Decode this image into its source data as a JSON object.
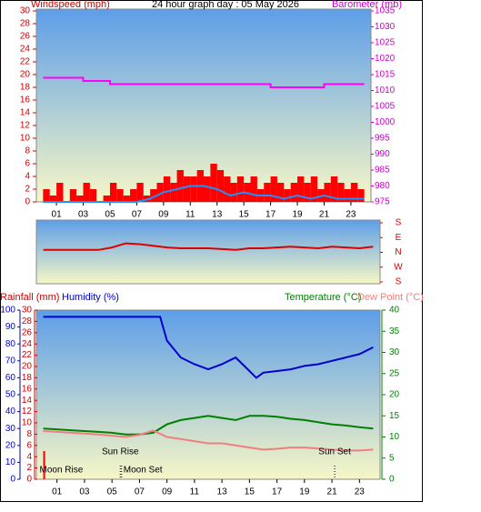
{
  "chart_data": [
    {
      "type": "line",
      "title": "24 hour graph day : 05 May 2026",
      "y_label": "Windspeed (mph)",
      "xlim": [
        -0.5,
        24.5
      ],
      "xticks": [
        {
          "value": 1,
          "label": "01"
        },
        {
          "value": 3,
          "label": "03"
        },
        {
          "value": 5,
          "label": "05"
        },
        {
          "value": 7,
          "label": "07"
        },
        {
          "value": 9,
          "label": "09"
        },
        {
          "value": 11,
          "label": "11"
        },
        {
          "value": 13,
          "label": "13"
        },
        {
          "value": 15,
          "label": "15"
        },
        {
          "value": 17,
          "label": "17"
        },
        {
          "value": 19,
          "label": "19"
        },
        {
          "value": 21,
          "label": "21"
        },
        {
          "value": 23,
          "label": "23"
        }
      ],
      "ylim": [
        0,
        30
      ],
      "yticks": [
        0,
        2,
        4,
        6,
        8,
        10,
        12,
        14,
        16,
        18,
        20,
        22,
        24,
        26,
        28,
        30
      ],
      "y2lim": [
        975,
        1035
      ],
      "y2ticks": [
        975,
        980,
        985,
        990,
        995,
        1000,
        1005,
        1010,
        1015,
        1020,
        1025,
        1030,
        1035
      ],
      "series": [
        {
          "type": "bar",
          "color": "#ff0000",
          "axis": "y",
          "x": [
            0,
            0.5,
            1,
            1.5,
            2,
            2.5,
            3,
            3.5,
            4,
            4.5,
            5,
            5.5,
            6,
            6.5,
            7,
            7.5,
            8,
            8.5,
            9,
            9.5,
            10,
            10.5,
            11,
            11.5,
            12,
            12.5,
            13,
            13.5,
            14,
            14.5,
            15,
            15.5,
            16,
            16.5,
            17,
            17.5,
            18,
            18.5,
            19,
            19.5,
            20,
            20.5,
            21,
            21.5,
            22,
            22.5,
            23,
            23.5
          ],
          "values": [
            2,
            1,
            3,
            0,
            2,
            1,
            3,
            2,
            0,
            1,
            3,
            2,
            1,
            2,
            3,
            1,
            2,
            3,
            4,
            3,
            5,
            4,
            4,
            5,
            4,
            6,
            5,
            4,
            3,
            4,
            3,
            4,
            2,
            3,
            4,
            3,
            2,
            3,
            4,
            3,
            4,
            2,
            3,
            4,
            3,
            2,
            3,
            2
          ]
        },
        {
          "type": "line",
          "color": "#1e90ff",
          "axis": "y",
          "x": [
            0,
            1,
            2,
            3,
            4,
            5,
            6,
            7,
            8,
            9,
            10,
            11,
            12,
            13,
            14,
            15,
            16,
            17,
            18,
            19,
            20,
            21,
            22,
            23,
            24
          ],
          "values": [
            0,
            0,
            0,
            0,
            0,
            0,
            0,
            0,
            0.5,
            1.5,
            2,
            2.5,
            2.5,
            2,
            1,
            1.5,
            1,
            1,
            0.5,
            1,
            0.5,
            1,
            0.5,
            0.5,
            0.5
          ]
        },
        {
          "type": "line",
          "name": "Barometer (mb)",
          "color": "#ff00ff",
          "axis": "y2",
          "x": [
            0,
            3,
            3,
            5,
            5,
            17,
            17,
            21,
            21,
            24
          ],
          "values": [
            1014,
            1014,
            1013,
            1013,
            1012,
            1012,
            1011,
            1011,
            1012,
            1012
          ]
        }
      ]
    },
    {
      "type": "line",
      "xlim": [
        -0.5,
        24.5
      ],
      "ylim": [
        -180,
        180
      ],
      "yticks": [
        {
          "value": 180,
          "label": "S"
        },
        {
          "value": 90,
          "label": "E"
        },
        {
          "value": 0,
          "label": "N"
        },
        {
          "value": -90,
          "label": "W"
        },
        {
          "value": -180,
          "label": "S"
        }
      ],
      "series": [
        {
          "color": "#dd0000",
          "axis": "y",
          "x": [
            0,
            1,
            2,
            3,
            4,
            5,
            6,
            7,
            8,
            9,
            10,
            11,
            12,
            13,
            14,
            15,
            16,
            17,
            18,
            19,
            20,
            21,
            22,
            23,
            24
          ],
          "values": [
            15,
            15,
            15,
            15,
            15,
            30,
            55,
            50,
            40,
            30,
            25,
            25,
            25,
            20,
            15,
            25,
            25,
            30,
            35,
            30,
            25,
            35,
            30,
            25,
            35
          ]
        }
      ]
    },
    {
      "type": "line",
      "xlim": [
        -0.5,
        24.5
      ],
      "xticks": [
        {
          "value": 1,
          "label": "01"
        },
        {
          "value": 3,
          "label": "03"
        },
        {
          "value": 5,
          "label": "05"
        },
        {
          "value": 7,
          "label": "07"
        },
        {
          "value": 9,
          "label": "09"
        },
        {
          "value": 11,
          "label": "11"
        },
        {
          "value": 13,
          "label": "13"
        },
        {
          "value": 15,
          "label": "15"
        },
        {
          "value": 17,
          "label": "17"
        },
        {
          "value": 19,
          "label": "19"
        },
        {
          "value": 21,
          "label": "21"
        },
        {
          "value": 23,
          "label": "23"
        }
      ],
      "ylim": [
        0,
        30
      ],
      "yticks": [
        0,
        2,
        4,
        6,
        8,
        10,
        12,
        14,
        16,
        18,
        20,
        22,
        24,
        26,
        28,
        30
      ],
      "y2lim": [
        0,
        40
      ],
      "y2ticks": [
        0,
        5,
        10,
        15,
        20,
        25,
        30,
        35,
        40
      ],
      "y3lim": [
        0,
        100
      ],
      "y3ticks": [
        0,
        10,
        20,
        30,
        40,
        50,
        60,
        70,
        80,
        90,
        100
      ],
      "series": [
        {
          "type": "bar",
          "name": "Rainfall (mm)",
          "color": "#ff0000",
          "axis": "y",
          "x": [
            0
          ],
          "values": [
            5
          ]
        },
        {
          "type": "line",
          "name": "Humidity (%)",
          "color": "#0000cc",
          "axis": "y3",
          "x": [
            0,
            8.5,
            9,
            10,
            11,
            12,
            13,
            14,
            15,
            15.5,
            16,
            17,
            18,
            19,
            20,
            21,
            22,
            23,
            24
          ],
          "values": [
            96,
            96,
            82,
            72,
            68,
            65,
            68,
            72,
            64,
            60,
            63,
            64,
            65,
            67,
            68,
            70,
            72,
            74,
            78
          ]
        },
        {
          "type": "line",
          "name": "Temperature (°C)",
          "color": "#008000",
          "axis": "y2",
          "x": [
            0,
            1,
            2,
            3,
            4,
            5,
            6,
            7,
            8,
            9,
            10,
            11,
            12,
            13,
            14,
            15,
            16,
            17,
            18,
            19,
            20,
            21,
            22,
            23,
            24
          ],
          "values": [
            12,
            11.8,
            11.6,
            11.4,
            11.2,
            11,
            10.6,
            10.6,
            11,
            13,
            14,
            14.5,
            15,
            14.5,
            14,
            15,
            15,
            14.8,
            14.3,
            14,
            13.5,
            13,
            12.7,
            12.3,
            12
          ]
        },
        {
          "type": "line",
          "name": "Dew Point (°C)",
          "color": "#f08080",
          "axis": "y2",
          "x": [
            0,
            1,
            2,
            3,
            4,
            5,
            6,
            7,
            8,
            9,
            10,
            11,
            12,
            13,
            14,
            15,
            16,
            17,
            18,
            19,
            20,
            21,
            22,
            23,
            24
          ],
          "values": [
            11.4,
            11.2,
            11,
            10.8,
            10.6,
            10.3,
            10,
            10.5,
            11.5,
            10,
            9.5,
            9,
            8.5,
            8.5,
            8,
            7.5,
            7,
            7.2,
            7.5,
            7.5,
            7.3,
            7,
            6.8,
            6.8,
            7
          ]
        }
      ],
      "events": [
        {
          "label": "Moon Rise",
          "x": -0.4
        },
        {
          "label": "Sun Rise",
          "x": 5.6
        },
        {
          "label": "Moon Set",
          "x": 5.7
        },
        {
          "label": "Sun Set",
          "x": 21.2
        }
      ]
    }
  ]
}
